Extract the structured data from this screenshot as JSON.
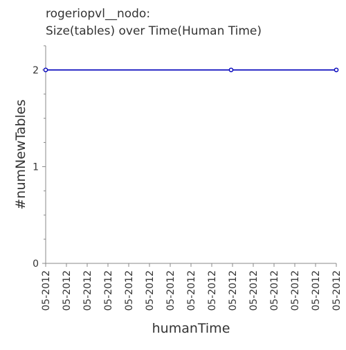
{
  "chart_data": {
    "type": "line",
    "title_lines": [
      "rogeriopvl__nodo:",
      "Size(tables) over Time(Human Time)"
    ],
    "xlabel": "humanTime",
    "ylabel": "#numNewTables",
    "x_ticks": [
      "05-2012",
      "05-2012",
      "05-2012",
      "05-2012",
      "05-2012",
      "05-2012",
      "05-2012",
      "05-2012",
      "05-2012",
      "05-2012",
      "05-2012",
      "05-2012",
      "05-2012",
      "05-2012",
      "05-2012"
    ],
    "y_ticks": [
      0,
      1,
      2
    ],
    "ylim": [
      0,
      2.25
    ],
    "grid": false,
    "series": [
      {
        "color": "#0000bb",
        "points": [
          {
            "x_fraction": 0.0,
            "y": 2
          },
          {
            "x_fraction": 0.638,
            "y": 2
          },
          {
            "x_fraction": 1.0,
            "y": 2
          }
        ]
      }
    ]
  }
}
